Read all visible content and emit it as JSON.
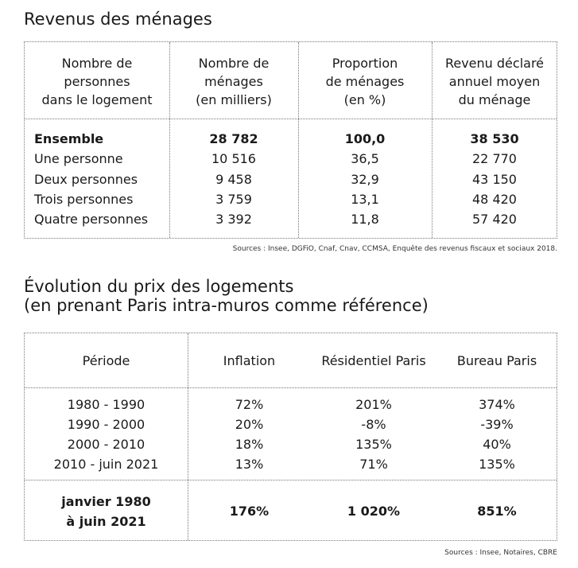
{
  "table1": {
    "title": "Revenus des ménages",
    "headers": [
      [
        "Nombre de",
        "personnes",
        "dans le logement"
      ],
      [
        "Nombre de",
        "ménages",
        "(en milliers)"
      ],
      [
        "Proportion",
        "de ménages",
        "(en %)"
      ],
      [
        "Revenu déclaré",
        "annuel moyen",
        "du ménage"
      ]
    ],
    "rows": [
      [
        "Ensemble",
        "28 782",
        "100,0",
        "38 530"
      ],
      [
        "Une personne",
        "10 516",
        "36,5",
        "22 770"
      ],
      [
        "Deux personnes",
        "9 458",
        "32,9",
        "43 150"
      ],
      [
        "Trois personnes",
        "3 759",
        "13,1",
        "48 420"
      ],
      [
        "Quatre personnes",
        "3 392",
        "11,8",
        "57 420"
      ]
    ],
    "source": "Sources : Insee, DGFiO, Cnaf, Cnav, CCMSA, Enquête des revenus fiscaux et sociaux 2018."
  },
  "table2": {
    "title_line1": "Évolution du prix des logements",
    "title_line2": "(en prenant Paris intra-muros comme référence)",
    "headers": [
      "Période",
      "Inflation",
      "Résidentiel Paris",
      "Bureau Paris"
    ],
    "rows": [
      [
        "1980 - 1990",
        "72%",
        "201%",
        "374%"
      ],
      [
        "1990 - 2000",
        "20%",
        "-8%",
        "-39%"
      ],
      [
        "2000 - 2010",
        "18%",
        "135%",
        "40%"
      ],
      [
        "2010 - juin 2021",
        "13%",
        "71%",
        "135%"
      ]
    ],
    "total": {
      "label_line1": "janvier 1980",
      "label_line2": "à juin 2021",
      "values": [
        "176%",
        "1 020%",
        "851%"
      ]
    },
    "source": "Sources : Insee, Notaires, CBRE"
  }
}
